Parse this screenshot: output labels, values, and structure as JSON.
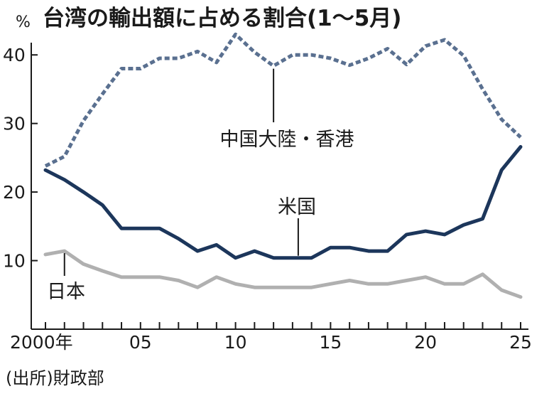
{
  "title": "台湾の輸出額に占める割合(1～5月)",
  "unit": "%",
  "source": "(出所)財政部",
  "colors": {
    "china": "#5a7090",
    "us": "#1c365b",
    "japan": "#b0b0b0",
    "axis": "#1a1a1a"
  },
  "chart_data": {
    "type": "line",
    "title": "台湾の輸出額に占める割合(1～5月)",
    "ylabel": "%",
    "xlabel": "",
    "ylim": [
      0,
      45
    ],
    "xlim": [
      2000,
      2025
    ],
    "yticks": [
      10,
      20,
      30,
      40
    ],
    "xticks": [
      {
        "value": 2000,
        "label": "2000年"
      },
      {
        "value": 2005,
        "label": "05"
      },
      {
        "value": 2010,
        "label": "10"
      },
      {
        "value": 2015,
        "label": "15"
      },
      {
        "value": 2020,
        "label": "20"
      },
      {
        "value": 2025,
        "label": "25"
      }
    ],
    "grid": false,
    "x": [
      2000,
      2001,
      2002,
      2003,
      2004,
      2005,
      2006,
      2007,
      2008,
      2009,
      2010,
      2011,
      2012,
      2013,
      2014,
      2015,
      2016,
      2017,
      2018,
      2019,
      2020,
      2021,
      2022,
      2023,
      2024,
      2025
    ],
    "series": [
      {
        "key": "china",
        "name": "中国大陸・香港",
        "style": "dotted",
        "values": [
          23.8,
          25.2,
          30.4,
          34.3,
          38.0,
          38.0,
          39.5,
          39.5,
          40.5,
          38.9,
          43.0,
          40.4,
          38.4,
          40.0,
          40.0,
          39.5,
          38.5,
          39.5,
          40.9,
          38.6,
          41.3,
          42.2,
          39.9,
          35.0,
          30.6,
          28.0
        ]
      },
      {
        "key": "us",
        "name": "米国",
        "style": "solid",
        "values": [
          23.2,
          21.8,
          20.0,
          18.1,
          14.7,
          14.7,
          14.7,
          13.2,
          11.4,
          12.3,
          10.4,
          11.4,
          10.4,
          10.4,
          10.4,
          11.9,
          11.9,
          11.4,
          11.4,
          13.8,
          14.3,
          13.8,
          15.2,
          16.1,
          23.2,
          26.6
        ]
      },
      {
        "key": "japan",
        "name": "日本",
        "style": "solid",
        "values": [
          10.9,
          11.4,
          9.5,
          8.5,
          7.6,
          7.6,
          7.6,
          7.1,
          6.1,
          7.6,
          6.6,
          6.1,
          6.1,
          6.1,
          6.1,
          6.6,
          7.1,
          6.6,
          6.6,
          7.1,
          7.6,
          6.6,
          6.6,
          8.0,
          5.7,
          4.7
        ]
      }
    ]
  }
}
